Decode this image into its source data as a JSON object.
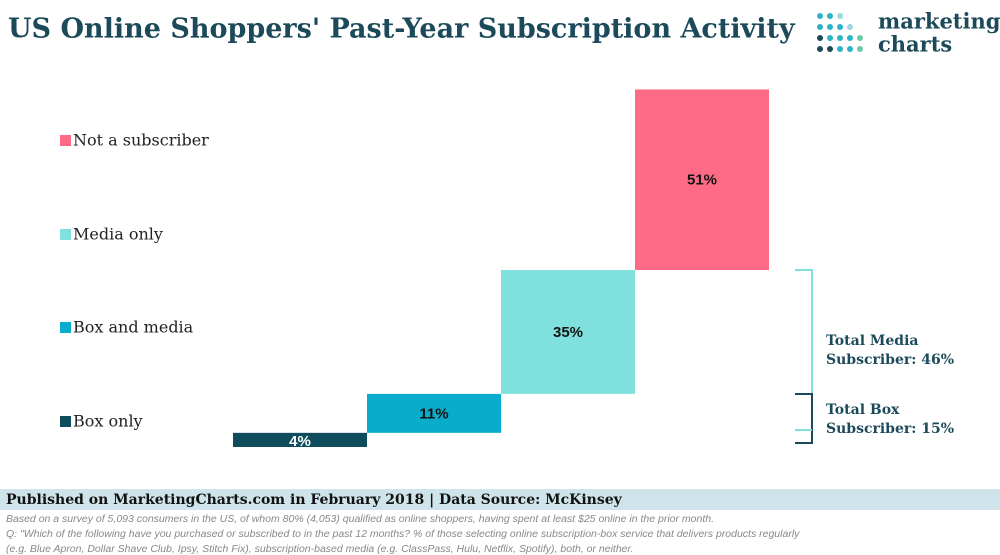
{
  "chart_data": {
    "type": "waterfall",
    "title": "US Online Shoppers' Past-Year Subscription Activity",
    "categories": [
      "Box only",
      "Box and media",
      "Media only",
      "Not a subscriber"
    ],
    "values": [
      4,
      11,
      35,
      51
    ],
    "value_labels": [
      "4%",
      "11%",
      "35%",
      "51%"
    ],
    "colors": [
      "#0f4c5c",
      "#0aaccc",
      "#7fe0dd",
      "#ff6b86"
    ],
    "annotations": [
      [
        "Total Media",
        "Subscriber: 46%"
      ],
      [
        "Total Box",
        "Subscriber: 15%"
      ]
    ]
  },
  "logo": [
    "marketing",
    "charts"
  ],
  "footer": {
    "published": "Published on MarketingCharts.com in February 2018 | Data Source: McKinsey",
    "notes": [
      "Based on a survey of 5,093 consumers in the US, of whom 80% (4,053) qualified as online shoppers, having spent at least $25 online in the prior month.",
      "Q: \"Which of the following have you purchased or subscribed to in the past 12 months? % of those selecting online subscription-box service that delivers products regularly",
      "(e.g. Blue Apron, Dollar Shave Club, Ipsy, Stitch Fix), subscription-based media (e.g. ClassPass, Hulu, Netflix, Spotify), both, or neither."
    ]
  }
}
